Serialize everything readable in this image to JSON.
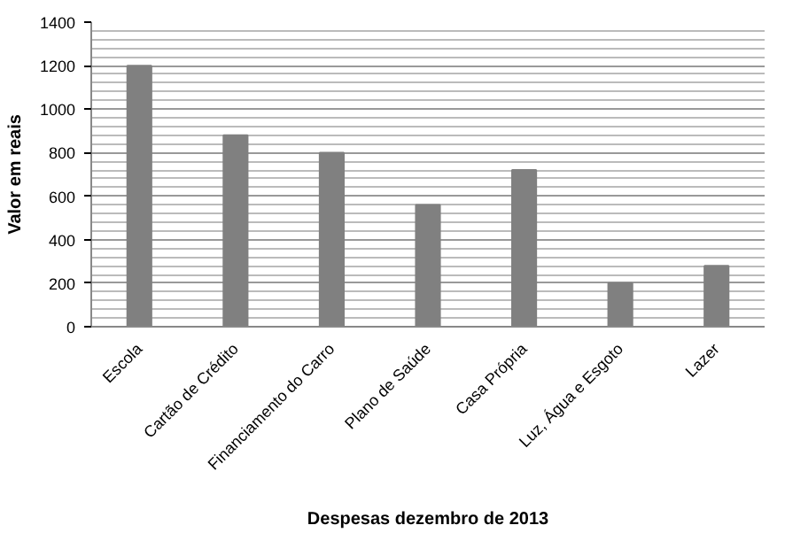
{
  "chart_data": {
    "type": "bar",
    "xlabel": "Despesas dezembro de 2013",
    "ylabel": "Valor em reais",
    "categories": [
      "Escola",
      "Cartão de Crédito",
      "Financiamento do Carro",
      "Plano de Saúde",
      "Casa Própria",
      "Luz, Água e Esgoto",
      "Lazer"
    ],
    "values": [
      1200,
      880,
      800,
      560,
      720,
      200,
      280
    ],
    "color": "#808080",
    "ylim": [
      0,
      1400
    ],
    "yticks": [
      0,
      200,
      400,
      600,
      800,
      1000,
      1200,
      1400
    ],
    "grid": "y"
  }
}
